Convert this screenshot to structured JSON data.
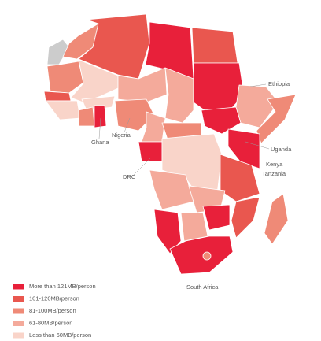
{
  "map": {
    "country_labels": [
      "Ethiopia",
      "Nigeria",
      "Ghana",
      "Uganda",
      "Kenya",
      "Tanzania",
      "DRC",
      "South Africa"
    ],
    "legend": [
      {
        "label": "More than 121MB/person",
        "color": "#e8203a"
      },
      {
        "label": "101-120MB/person",
        "color": "#e9574f"
      },
      {
        "label": "81-100MB/person",
        "color": "#ef8a77"
      },
      {
        "label": "61-80MB/person",
        "color": "#f4aa9b"
      },
      {
        "label": "Less than 60MB/person",
        "color": "#f9d4c9"
      }
    ]
  }
}
